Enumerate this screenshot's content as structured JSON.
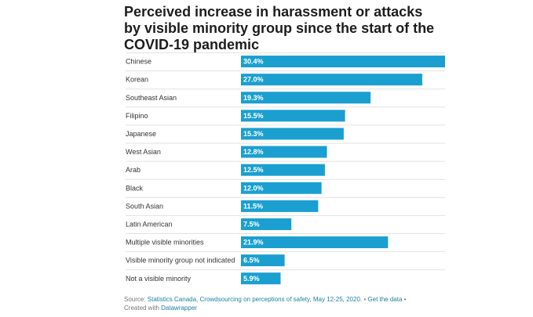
{
  "title": "Perceived increase in harassment or attacks by visible minority group since the start of the COVID-19 pandemic",
  "chart_data": {
    "type": "bar",
    "orientation": "horizontal",
    "categories": [
      "Chinese",
      "Korean",
      "Southeast Asian",
      "Filipino",
      "Japanese",
      "West Asian",
      "Arab",
      "Black",
      "South Asian",
      "Latin American",
      "Multiple visible minorities",
      "Visible minority group not indicated",
      "Not a visible minority"
    ],
    "values": [
      30.4,
      27.0,
      19.3,
      15.5,
      15.3,
      12.8,
      12.5,
      12.0,
      11.5,
      7.5,
      21.9,
      6.5,
      5.9
    ],
    "value_labels": [
      "30.4%",
      "27.0%",
      "19.3%",
      "15.5%",
      "15.3%",
      "12.8%",
      "12.5%",
      "12.0%",
      "11.5%",
      "7.5%",
      "21.9%",
      "6.5%",
      "5.9%"
    ],
    "unit": "%",
    "xlim": [
      0,
      30.4
    ],
    "bar_color": "#1a9fd0",
    "grid": false,
    "title": "Perceived increase in harassment or attacks by visible minority group since the start of the COVID-19 pandemic"
  },
  "footer": {
    "source_prefix": "Source: ",
    "source_link": "Statistics Canada, Crowdsourcing on perceptions of safety, May 12-25, 2020.",
    "separator1": " • ",
    "get_data": "Get the data",
    "separator2": " •",
    "created_with": "Created with ",
    "datawrapper": "Datawrapper"
  }
}
